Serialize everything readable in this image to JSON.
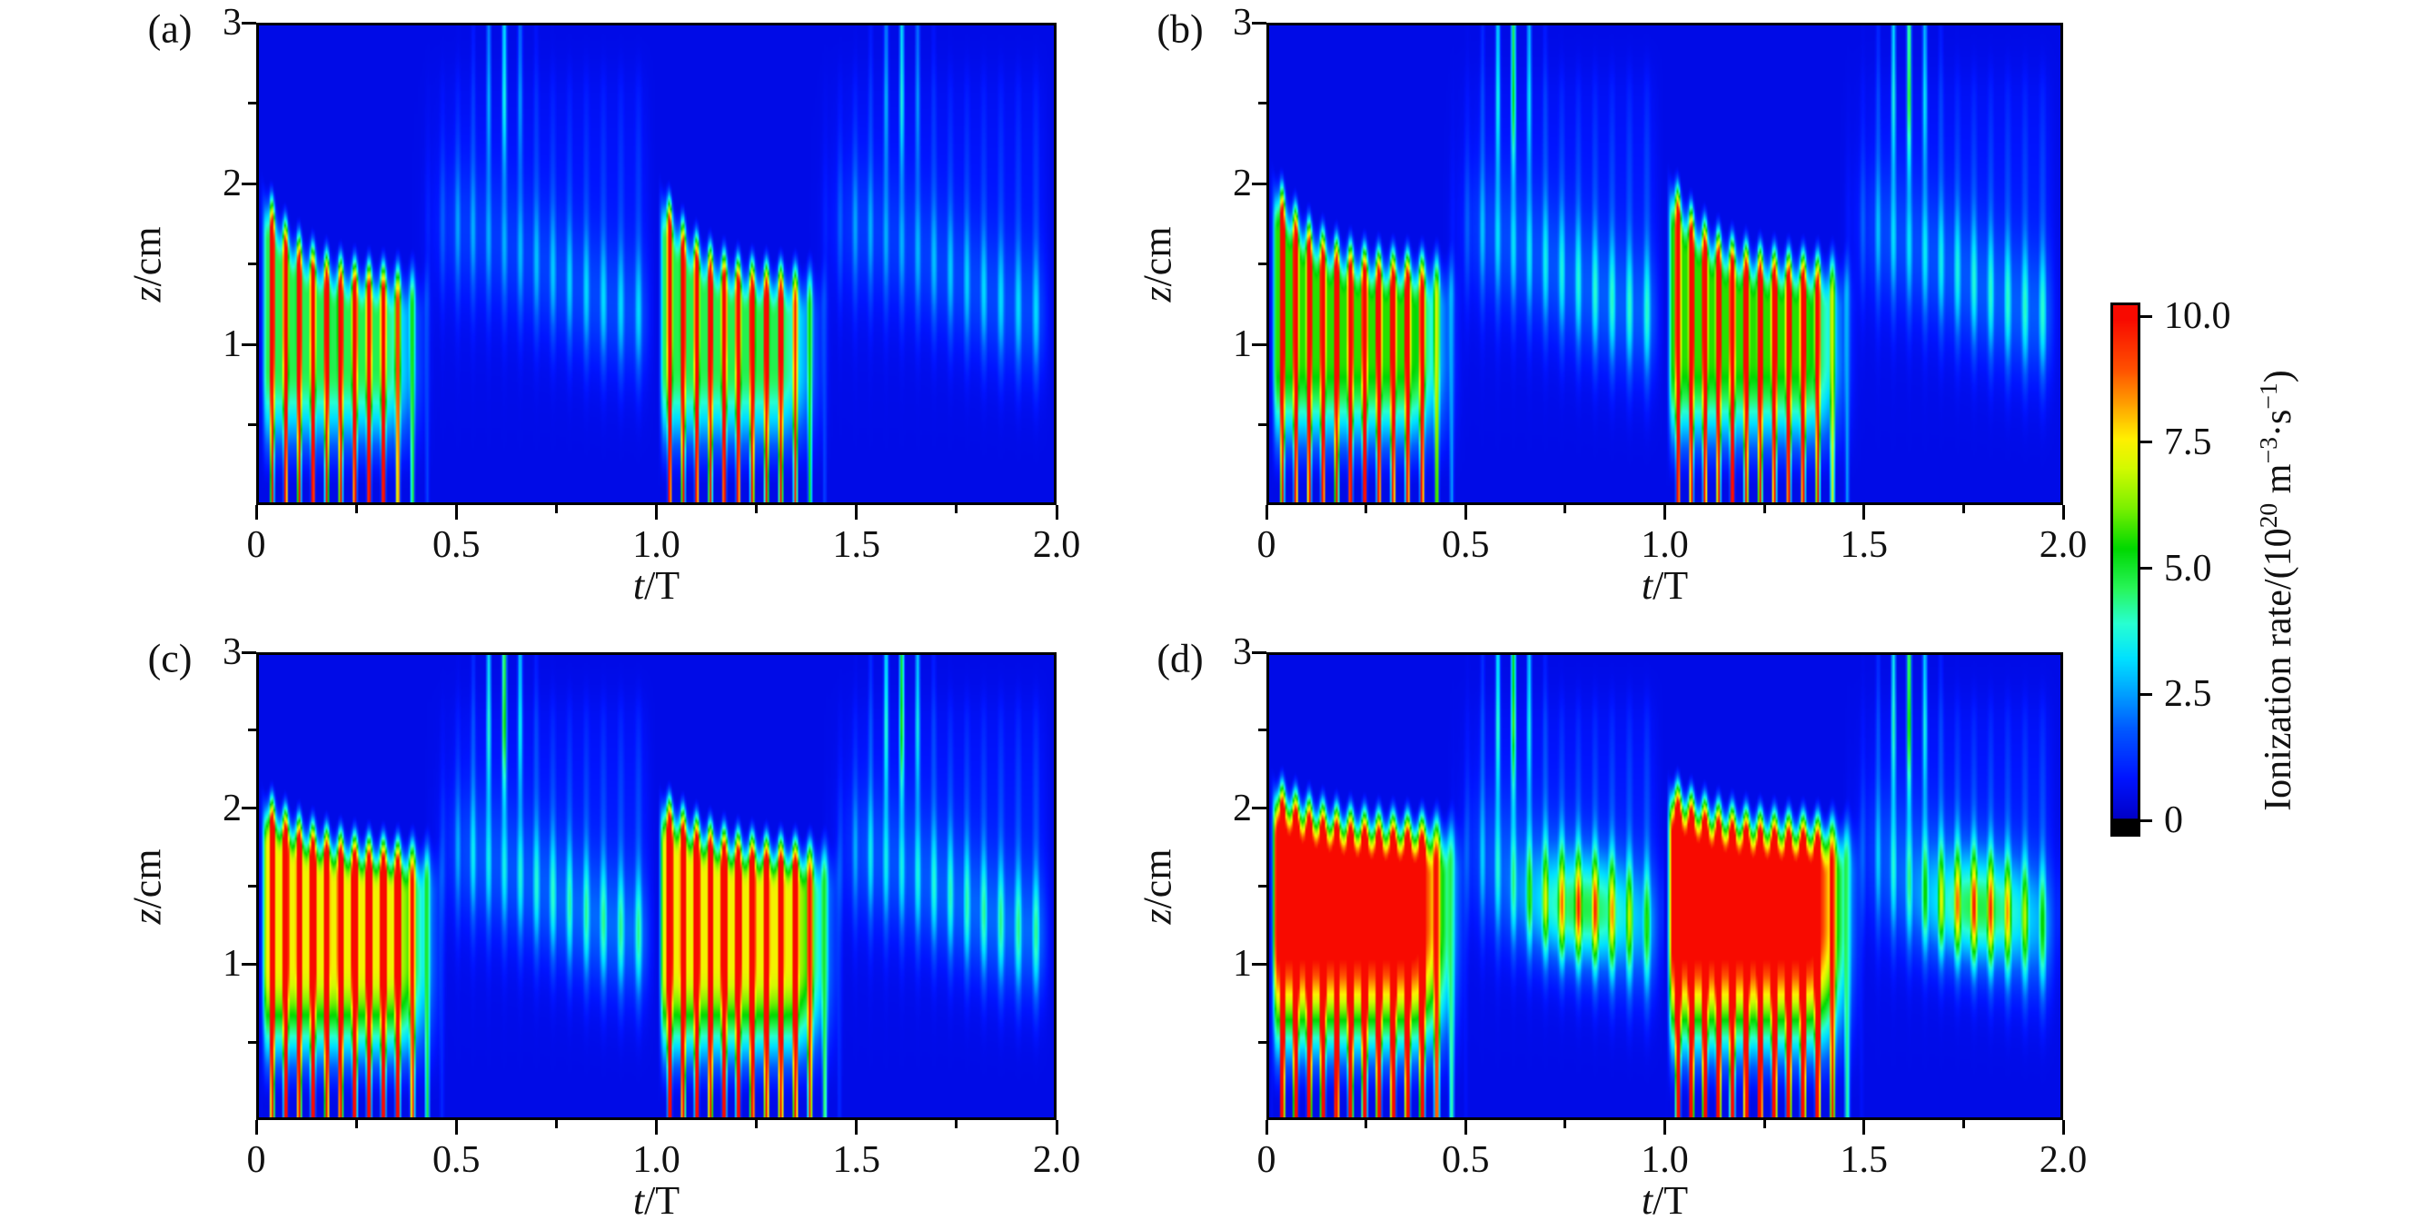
{
  "figure": {
    "background": "#ffffff",
    "frame_color": "#000000"
  },
  "chart_data": {
    "type": "heatmap",
    "layout": "2x2 grid of spatiotemporal ionization-rate maps sharing one vertical colorbar on the right",
    "title": "",
    "xlabel": "t/T",
    "xlabel_italic": "t",
    "xlabel_rest": "/T",
    "ylabel": "z/cm",
    "ylabel_italic": "z",
    "ylabel_rest": "/cm",
    "x_range": [
      0,
      2.0
    ],
    "y_range": [
      0,
      3
    ],
    "x_major_ticks": [
      "0",
      "0.5",
      "1.0",
      "1.5",
      "2.0"
    ],
    "x_major_values": [
      0,
      0.5,
      1.0,
      1.5,
      2.0
    ],
    "x_minor_values": [
      0.25,
      0.75,
      1.25,
      1.75
    ],
    "y_major_ticks": [
      "1",
      "2",
      "3"
    ],
    "y_major_values": [
      1,
      2,
      3
    ],
    "y_minor_values": [
      0.5,
      1.5,
      2.5
    ],
    "grid": false,
    "colorbar": {
      "label": "Ionization rate/(10^20 m^-3·s^-1)",
      "label_parts": [
        [
          "Ionization rate/(10",
          false
        ],
        [
          "20",
          true
        ],
        [
          " m",
          false
        ],
        [
          "−3",
          true
        ],
        [
          "·s",
          false
        ],
        [
          "−1",
          true
        ],
        [
          ")",
          false
        ]
      ],
      "ticks": [
        "0",
        "2.5",
        "5.0",
        "7.5",
        "10.0"
      ],
      "tick_values": [
        0,
        2.5,
        5.0,
        7.5,
        10.0
      ],
      "range": [
        0,
        10
      ],
      "under_range_color": "#000000",
      "colormap_stops": [
        [
          0.0,
          0,
          0,
          200
        ],
        [
          0.8,
          0,
          20,
          255
        ],
        [
          1.8,
          0,
          90,
          255
        ],
        [
          2.6,
          0,
          170,
          255
        ],
        [
          3.2,
          0,
          225,
          255
        ],
        [
          3.9,
          40,
          255,
          210
        ],
        [
          4.6,
          40,
          245,
          90
        ],
        [
          5.4,
          0,
          216,
          0
        ],
        [
          6.2,
          120,
          240,
          0
        ],
        [
          7.0,
          210,
          250,
          0
        ],
        [
          7.6,
          255,
          240,
          0
        ],
        [
          8.3,
          255,
          160,
          0
        ],
        [
          9.0,
          255,
          80,
          0
        ],
        [
          10.0,
          248,
          10,
          0
        ]
      ]
    },
    "panels": [
      {
        "label": "(a)",
        "description": "Weakest discharge: striped red ionization streaks during t/T 0-0.4 reaching z~1.8, faint blue-cyan afterglow band z~1.2-1.9 during t/T 0.5-1.0, cyan needle stripes to z=3 near t/T~0.6; pattern repeats each period",
        "synth": {
          "amp": 12.5,
          "base": 0.34,
          "bz": 0.85,
          "sharp": 1.0,
          "zA": 1.5,
          "zB": 0.62,
          "zTau": 0.09,
          "soft": 0.32,
          "tEnd": 0.4,
          "aft": 2.0,
          "tall": 0.85,
          "ndl": 0.9,
          "blob": 0
        }
      },
      {
        "label": "(b)",
        "description": "Stronger: red streak group to t/T~0.45 reaching z~2.0, brighter cyan afterglow band descending from z~1.7 to 1.2, pronounced top needles near t/T~0.6",
        "synth": {
          "amp": 13.0,
          "base": 0.4,
          "bz": 0.9,
          "sharp": 0.9,
          "zA": 1.58,
          "zB": 0.6,
          "zTau": 0.1,
          "soft": 0.34,
          "tEnd": 0.45,
          "aft": 2.6,
          "tall": 1.0,
          "ndl": 1.35,
          "blob": 0
        }
      },
      {
        "label": "(c)",
        "description": "Denser red region (quasi-continuous) up to z~2.0 until t/T~0.42, strong cyan afterglow band around z~1.2-1.6 until period end",
        "synth": {
          "amp": 14.0,
          "base": 0.5,
          "bz": 1.0,
          "sharp": 0.7,
          "zA": 1.8,
          "zB": 0.38,
          "zTau": 0.13,
          "soft": 0.34,
          "tEnd": 0.43,
          "aft": 2.9,
          "tall": 1.05,
          "ndl": 1.45,
          "blob": 0
        }
      },
      {
        "label": "(d)",
        "description": "Strongest: nearly solid red blob z~0.2-2.1 for t/T 0.05-0.45 with scalloped green cap, green secondary maximum (~5) centered near t/T~0.8, z~1.4 inside cyan afterglow",
        "synth": {
          "amp": 15.5,
          "base": 0.68,
          "bz": 1.25,
          "sharp": 0.5,
          "zA": 1.98,
          "zB": 0.28,
          "zTau": 0.12,
          "soft": 0.38,
          "tEnd": 0.46,
          "aft": 3.0,
          "tall": 1.1,
          "ndl": 1.5,
          "blob": 5.6
        }
      }
    ]
  }
}
